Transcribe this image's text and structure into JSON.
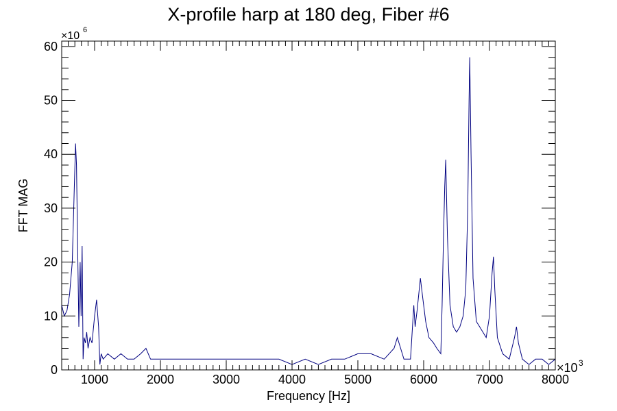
{
  "chart_data": {
    "type": "line",
    "title": "X-profile harp at 180 deg, Fiber #6",
    "xlabel": "Frequency [Hz]",
    "ylabel": "FFT MAG",
    "x_multiplier_label": "×10",
    "x_multiplier_exp": "3",
    "y_multiplier_label": "×10",
    "y_multiplier_exp": "6",
    "xlim": [
      500,
      8000
    ],
    "ylim": [
      0,
      61
    ],
    "x_ticks": [
      1000,
      2000,
      3000,
      4000,
      5000,
      6000,
      7000,
      8000
    ],
    "x_tick_labels": [
      "1000",
      "2000",
      "3000",
      "4000",
      "5000",
      "6000",
      "7000",
      "8000"
    ],
    "y_ticks": [
      0,
      10,
      20,
      30,
      40,
      50,
      60
    ],
    "y_tick_labels": [
      "0",
      "10",
      "20",
      "30",
      "40",
      "50",
      "60"
    ],
    "grid": false,
    "line_color": "#000080",
    "series": [
      {
        "x": [
          500,
          540,
          580,
          620,
          660,
          690,
          710,
          725,
          740,
          760,
          780,
          795,
          810,
          825,
          840,
          860,
          880,
          900,
          930,
          960,
          1000,
          1030,
          1060,
          1080,
          1100,
          1130,
          1200,
          1300,
          1400,
          1500,
          1600,
          1700,
          1780,
          1850,
          2000,
          2200,
          2400,
          2600,
          2800,
          3000,
          3200,
          3400,
          3600,
          3800,
          4000,
          4200,
          4400,
          4600,
          4800,
          5000,
          5200,
          5400,
          5550,
          5600,
          5650,
          5700,
          5800,
          5850,
          5870,
          5900,
          5950,
          5990,
          6030,
          6080,
          6150,
          6200,
          6260,
          6280,
          6300,
          6320,
          6335,
          6360,
          6400,
          6450,
          6500,
          6550,
          6600,
          6640,
          6670,
          6690,
          6700,
          6720,
          6750,
          6800,
          6850,
          6900,
          6950,
          7000,
          7040,
          7060,
          7080,
          7120,
          7200,
          7300,
          7380,
          7410,
          7440,
          7500,
          7600,
          7700,
          7800,
          7900,
          8000
        ],
        "values": [
          12,
          10,
          11,
          14,
          20,
          33,
          42,
          38,
          25,
          8,
          20,
          10,
          23,
          2,
          6,
          5,
          7,
          4,
          6,
          5,
          10,
          13,
          8,
          1,
          3,
          2,
          3,
          2,
          3,
          2,
          2,
          3,
          4,
          2,
          2,
          2,
          2,
          2,
          2,
          2,
          2,
          2,
          2,
          2,
          1,
          2,
          1,
          2,
          2,
          3,
          3,
          2,
          4,
          6,
          4,
          2,
          2,
          12,
          8,
          11,
          17,
          13,
          9,
          6,
          5,
          4,
          3,
          12,
          24,
          34,
          39,
          25,
          12,
          8,
          7,
          8,
          10,
          15,
          30,
          50,
          58,
          40,
          17,
          9,
          8,
          7,
          6,
          10,
          18,
          21,
          15,
          6,
          3,
          2,
          6,
          8,
          5,
          2,
          1,
          2,
          2,
          1,
          2
        ]
      }
    ]
  }
}
